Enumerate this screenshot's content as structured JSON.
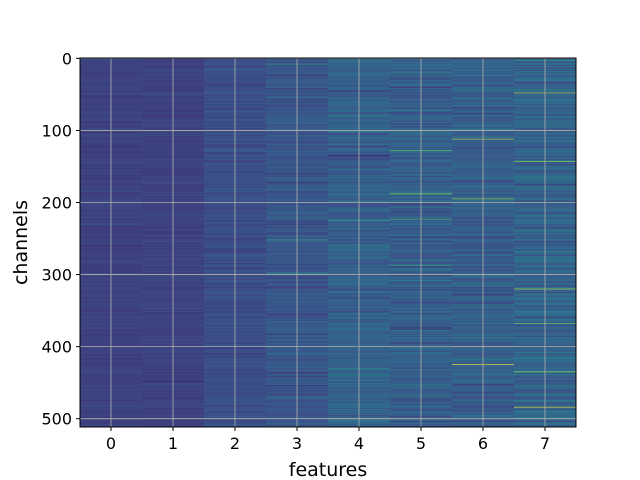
{
  "chart_data": {
    "type": "heatmap",
    "title": "",
    "xlabel": "features",
    "ylabel": "channels",
    "columns": [
      "0",
      "1",
      "2",
      "3",
      "4",
      "5",
      "6",
      "7"
    ],
    "rows": 512,
    "xlim": [
      -0.5,
      7.5
    ],
    "ylim": [
      511.5,
      -0.5
    ],
    "x_ticks": [
      0,
      1,
      2,
      3,
      4,
      5,
      6,
      7
    ],
    "y_ticks": [
      0,
      100,
      200,
      300,
      400,
      500
    ],
    "grid": true,
    "colormap": "viridis",
    "value_range": [
      0,
      1
    ],
    "column_mean_intensity": [
      0.2,
      0.2,
      0.24,
      0.27,
      0.31,
      0.3,
      0.3,
      0.32
    ],
    "column_variation": [
      0.05,
      0.05,
      0.08,
      0.12,
      0.14,
      0.15,
      0.15,
      0.17
    ],
    "notable_bright_rows": [
      {
        "feature": 3,
        "channel": 8,
        "value": 0.55
      },
      {
        "feature": 3,
        "channel": 252,
        "value": 0.55
      },
      {
        "feature": 3,
        "channel": 298,
        "value": 0.5
      },
      {
        "feature": 4,
        "channel": 225,
        "value": 0.55
      },
      {
        "feature": 4,
        "channel": 500,
        "value": 0.75
      },
      {
        "feature": 5,
        "channel": 128,
        "value": 0.7
      },
      {
        "feature": 5,
        "channel": 188,
        "value": 0.8
      },
      {
        "feature": 5,
        "channel": 223,
        "value": 0.65
      },
      {
        "feature": 5,
        "channel": 287,
        "value": 0.6
      },
      {
        "feature": 6,
        "channel": 112,
        "value": 0.85
      },
      {
        "feature": 6,
        "channel": 195,
        "value": 0.8
      },
      {
        "feature": 6,
        "channel": 400,
        "value": 0.9
      },
      {
        "feature": 6,
        "channel": 425,
        "value": 0.95
      },
      {
        "feature": 7,
        "channel": 48,
        "value": 0.85
      },
      {
        "feature": 7,
        "channel": 143,
        "value": 0.8
      },
      {
        "feature": 7,
        "channel": 320,
        "value": 0.85
      },
      {
        "feature": 7,
        "channel": 368,
        "value": 0.75
      },
      {
        "feature": 7,
        "channel": 435,
        "value": 0.8
      },
      {
        "feature": 7,
        "channel": 484,
        "value": 0.9
      }
    ],
    "notable_dark_rows": [
      {
        "feature": 5,
        "channel": 374,
        "value": 0.05
      },
      {
        "feature": 4,
        "channel": 135,
        "value": 0.08
      },
      {
        "feature": 1,
        "channel": 448,
        "value": 0.08
      }
    ]
  }
}
